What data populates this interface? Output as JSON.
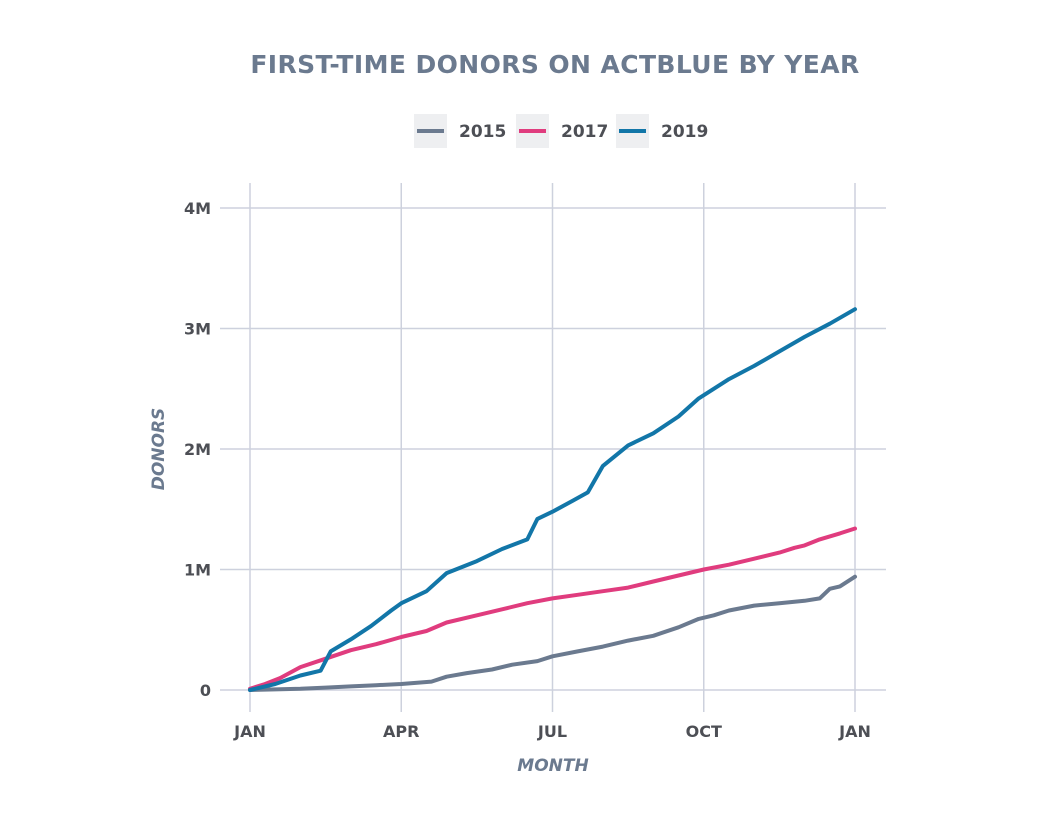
{
  "colors": {
    "title": "#6b7a8f",
    "tick": "#4d4f55",
    "axis_label": "#6b7a8f",
    "grid": "#cdd1dd",
    "legend_bg": "#eeeff1"
  },
  "chart_data": {
    "type": "line",
    "title": "FIRST-TIME DONORS ON ACTBLUE BY YEAR",
    "xlabel": "MONTH",
    "ylabel": "DONORS",
    "x_ticks": [
      {
        "x": 1,
        "label": "JAN"
      },
      {
        "x": 4,
        "label": "APR"
      },
      {
        "x": 7,
        "label": "JUL"
      },
      {
        "x": 10,
        "label": "OCT"
      },
      {
        "x": 13,
        "label": "JAN"
      }
    ],
    "y_ticks": [
      {
        "y": 0,
        "label": "0"
      },
      {
        "y": 1000000,
        "label": "1M"
      },
      {
        "y": 2000000,
        "label": "2M"
      },
      {
        "y": 3000000,
        "label": "3M"
      },
      {
        "y": 4000000,
        "label": "4M"
      }
    ],
    "xlim": [
      1,
      13
    ],
    "ylim": [
      0,
      4000000
    ],
    "grid": true,
    "legend_position": "top-center",
    "series": [
      {
        "name": "2015",
        "color": "#6b7a8f",
        "x": [
          1.0,
          1.5,
          2.0,
          2.5,
          3.0,
          3.5,
          4.0,
          4.6,
          4.9,
          5.3,
          5.8,
          6.2,
          6.7,
          7.0,
          7.5,
          8.0,
          8.5,
          9.0,
          9.5,
          9.9,
          10.2,
          10.5,
          11.0,
          11.5,
          12.0,
          12.3,
          12.5,
          12.7,
          13.0
        ],
        "y": [
          0,
          5000,
          10000,
          20000,
          30000,
          40000,
          50000,
          70000,
          110000,
          140000,
          170000,
          210000,
          240000,
          280000,
          320000,
          360000,
          410000,
          450000,
          520000,
          590000,
          620000,
          660000,
          700000,
          720000,
          740000,
          760000,
          840000,
          860000,
          940000
        ]
      },
      {
        "name": "2017",
        "color": "#e03c7e",
        "x": [
          1.0,
          1.3,
          1.6,
          2.0,
          2.5,
          3.0,
          3.5,
          4.0,
          4.5,
          4.9,
          5.5,
          6.0,
          6.5,
          7.0,
          7.5,
          8.0,
          8.5,
          9.0,
          9.5,
          10.0,
          10.5,
          11.0,
          11.5,
          11.8,
          12.0,
          12.3,
          12.7,
          13.0
        ],
        "y": [
          10000,
          50000,
          100000,
          190000,
          260000,
          330000,
          380000,
          440000,
          490000,
          560000,
          620000,
          670000,
          720000,
          760000,
          790000,
          820000,
          850000,
          900000,
          950000,
          1000000,
          1040000,
          1090000,
          1140000,
          1180000,
          1200000,
          1250000,
          1300000,
          1340000
        ]
      },
      {
        "name": "2019",
        "color": "#1276a8",
        "x": [
          1.0,
          1.5,
          2.0,
          2.4,
          2.6,
          3.0,
          3.4,
          3.8,
          4.0,
          4.5,
          4.9,
          5.5,
          6.0,
          6.5,
          6.7,
          7.0,
          7.4,
          7.7,
          8.0,
          8.5,
          9.0,
          9.5,
          9.9,
          10.5,
          11.0,
          11.5,
          12.0,
          12.5,
          13.0
        ],
        "y": [
          0,
          50000,
          120000,
          160000,
          320000,
          420000,
          530000,
          660000,
          720000,
          820000,
          970000,
          1070000,
          1170000,
          1250000,
          1420000,
          1480000,
          1570000,
          1640000,
          1860000,
          2030000,
          2130000,
          2270000,
          2420000,
          2580000,
          2690000,
          2810000,
          2930000,
          3040000,
          3160000
        ]
      }
    ]
  }
}
